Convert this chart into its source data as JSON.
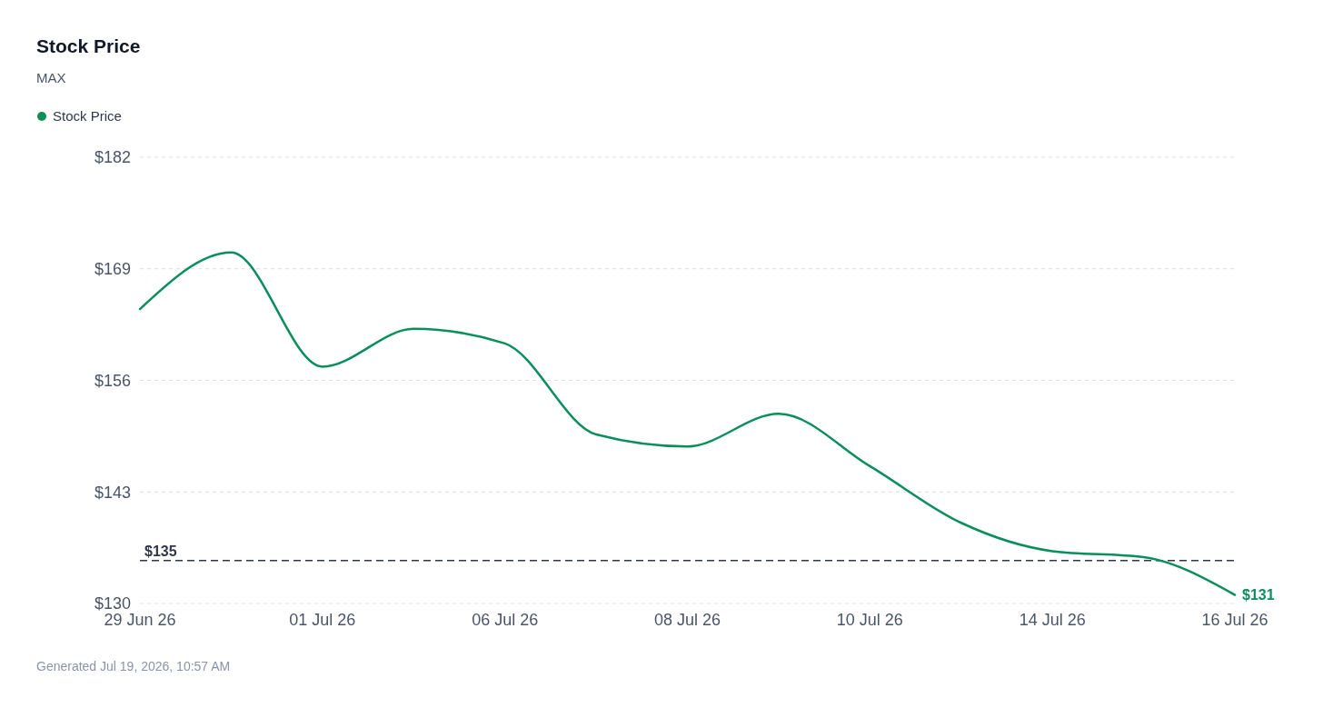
{
  "chart_data": {
    "type": "line",
    "title": "Stock Price",
    "subtitle": "MAX",
    "categories": [
      "29 Jun 26",
      null,
      "01 Jul 26",
      null,
      "06 Jul 26",
      null,
      "08 Jul 26",
      null,
      "10 Jul 26",
      null,
      "14 Jul 26",
      null,
      "16 Jul 26"
    ],
    "series": [
      {
        "name": "Stock Price",
        "color": "#0a8f5c",
        "values": [
          164.3,
          170.9,
          157.6,
          162.0,
          160.3,
          149.7,
          148.3,
          152.1,
          146.0,
          139.4,
          136.1,
          135.4,
          131
        ]
      }
    ],
    "ylim": [
      130,
      182
    ],
    "yticks": [
      {
        "value": 130,
        "label": "$130"
      },
      {
        "value": 143,
        "label": "$143"
      },
      {
        "value": 156,
        "label": "$156"
      },
      {
        "value": 169,
        "label": "$169"
      },
      {
        "value": 182,
        "label": "$182"
      }
    ],
    "grid": "y",
    "legend": "top left",
    "marker": "none",
    "line_style": "solid",
    "ref_lines": [
      {
        "axis": "y",
        "value": 135,
        "label": "$135",
        "color": "#2d3748",
        "line_style": "dashed"
      }
    ],
    "annotations": [
      {
        "text": "$131",
        "x": "16 Jul 26",
        "y": 131
      },
      "Generated Jul 19, 2026, 10:57 AM"
    ]
  }
}
